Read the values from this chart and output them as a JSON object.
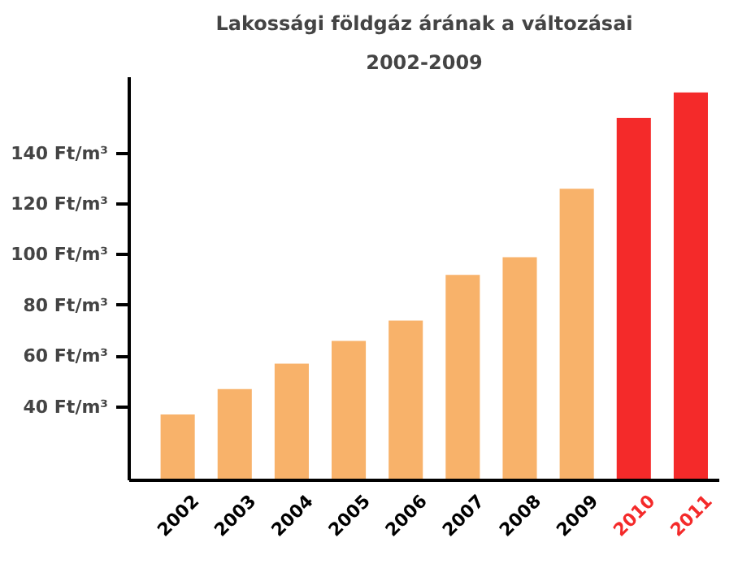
{
  "chart_data": {
    "type": "bar",
    "title": "Lakossági földgáz árának a változásai",
    "subtitle": "2002-2009",
    "categories": [
      "2002",
      "2003",
      "2004",
      "2005",
      "2006",
      "2007",
      "2008",
      "2009",
      "2010",
      "2011"
    ],
    "values": [
      37,
      47,
      57,
      66,
      74,
      92,
      99,
      126,
      154,
      164
    ],
    "colors": [
      "#f8b26a",
      "#f8b26a",
      "#f8b26a",
      "#f8b26a",
      "#f8b26a",
      "#f8b26a",
      "#f8b26a",
      "#f8b26a",
      "#f42a2a",
      "#f42a2a"
    ],
    "ylim": [
      11,
      170
    ],
    "yticks": [
      {
        "value": 40,
        "label": "40 Ft/m³"
      },
      {
        "value": 60,
        "label": "60 Ft/m³"
      },
      {
        "value": 80,
        "label": "80 Ft/m³"
      },
      {
        "value": 100,
        "label": "100 Ft/m³"
      },
      {
        "value": 120,
        "label": "120 Ft/m³"
      },
      {
        "value": 140,
        "label": "140 Ft/m³"
      }
    ],
    "grid": false
  }
}
